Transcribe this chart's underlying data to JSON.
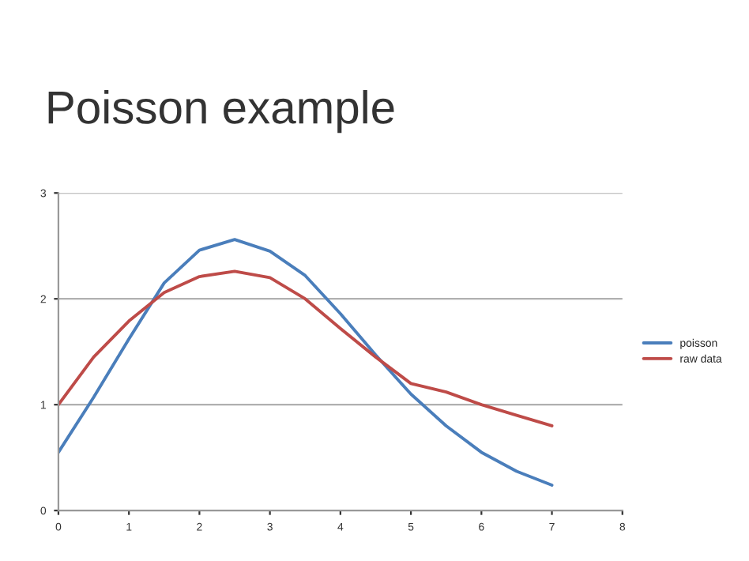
{
  "chart_data": {
    "type": "line",
    "title": "Poisson example",
    "x": [
      0,
      0.5,
      1,
      1.5,
      2,
      2.5,
      3,
      3.5,
      4,
      4.5,
      5,
      5.5,
      6,
      6.5,
      7
    ],
    "series": [
      {
        "name": "poisson",
        "color": "#4a7ebb",
        "values": [
          0.55,
          1.07,
          1.62,
          2.15,
          2.46,
          2.56,
          2.45,
          2.22,
          1.86,
          1.47,
          1.1,
          0.8,
          0.55,
          0.37,
          0.24
        ]
      },
      {
        "name": "raw data",
        "color": "#be4b48",
        "values": [
          1.0,
          1.45,
          1.79,
          2.06,
          2.21,
          2.26,
          2.2,
          2.0,
          1.72,
          1.45,
          1.2,
          1.12,
          1.0,
          0.9,
          0.8
        ]
      }
    ],
    "xlim": [
      0,
      8
    ],
    "xticks": [
      0,
      1,
      2,
      3,
      4,
      5,
      6,
      7,
      8
    ],
    "ylim": [
      0,
      3
    ],
    "yticks": [
      0,
      1,
      2,
      3
    ],
    "grid": "y",
    "legend": "right",
    "marker": "none",
    "line_style": "solid"
  }
}
